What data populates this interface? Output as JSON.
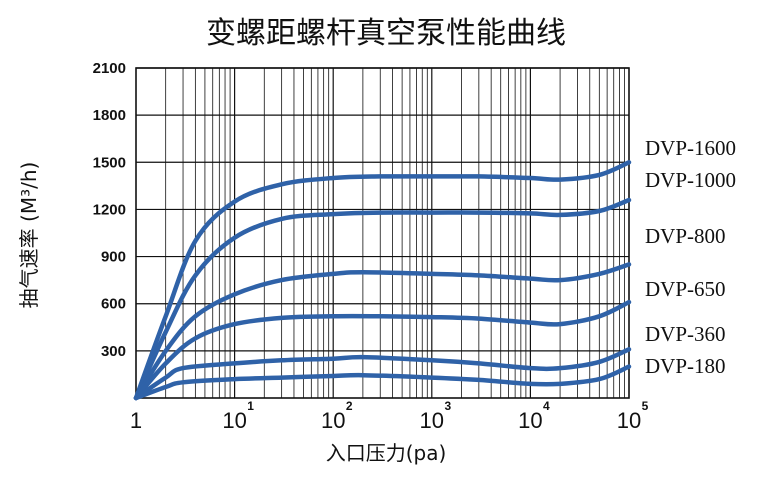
{
  "chart_data": {
    "type": "line",
    "title": "变螺距螺杆真空泵性能曲线",
    "xlabel": "入口压力(pa)",
    "ylabel": "抽气速率 (M³/h)",
    "x_scale": "log",
    "xlim": [
      1,
      100000
    ],
    "ylim": [
      0,
      2100
    ],
    "y_ticks": [
      300,
      600,
      900,
      1200,
      1500,
      1800,
      2100
    ],
    "x_ticks": [
      {
        "base": "1",
        "exp": ""
      },
      {
        "base": "10",
        "exp": "1"
      },
      {
        "base": "10",
        "exp": "2"
      },
      {
        "base": "10",
        "exp": "3"
      },
      {
        "base": "10",
        "exp": "4"
      },
      {
        "base": "10",
        "exp": "5"
      }
    ],
    "grid": true,
    "color": "#2f62a8",
    "legend": "series labels at right end of curves",
    "series": [
      {
        "name": "DVP-1600",
        "x": [
          1,
          2,
          4,
          10,
          30,
          100,
          300,
          1000,
          3000,
          10000,
          20000,
          50000,
          100000
        ],
        "y": [
          0,
          520,
          1000,
          1250,
          1360,
          1400,
          1410,
          1410,
          1410,
          1400,
          1390,
          1420,
          1500
        ]
      },
      {
        "name": "DVP-1000",
        "x": [
          1,
          2,
          4,
          10,
          30,
          100,
          300,
          1000,
          3000,
          10000,
          20000,
          50000,
          100000
        ],
        "y": [
          0,
          420,
          780,
          1020,
          1140,
          1170,
          1180,
          1180,
          1180,
          1175,
          1165,
          1190,
          1260
        ]
      },
      {
        "name": "DVP-800",
        "x": [
          1,
          2,
          4,
          10,
          30,
          100,
          200,
          1000,
          3000,
          10000,
          20000,
          50000,
          100000
        ],
        "y": [
          0,
          300,
          520,
          660,
          750,
          790,
          800,
          790,
          780,
          760,
          750,
          790,
          850
        ]
      },
      {
        "name": "DVP-650",
        "x": [
          1,
          2,
          4,
          10,
          30,
          100,
          300,
          1000,
          3000,
          10000,
          20000,
          50000,
          100000
        ],
        "y": [
          0,
          220,
          380,
          470,
          510,
          520,
          520,
          515,
          505,
          480,
          470,
          520,
          610
        ]
      },
      {
        "name": "DVP-360",
        "x": [
          1,
          2,
          3,
          10,
          30,
          100,
          200,
          1000,
          3000,
          10000,
          20000,
          50000,
          100000
        ],
        "y": [
          0,
          130,
          190,
          220,
          240,
          250,
          260,
          240,
          220,
          190,
          190,
          230,
          310
        ]
      },
      {
        "name": "DVP-180",
        "x": [
          1,
          2,
          3,
          10,
          30,
          100,
          200,
          1000,
          3000,
          10000,
          20000,
          50000,
          100000
        ],
        "y": [
          0,
          70,
          100,
          120,
          130,
          140,
          145,
          130,
          115,
          90,
          90,
          120,
          200
        ]
      }
    ]
  }
}
